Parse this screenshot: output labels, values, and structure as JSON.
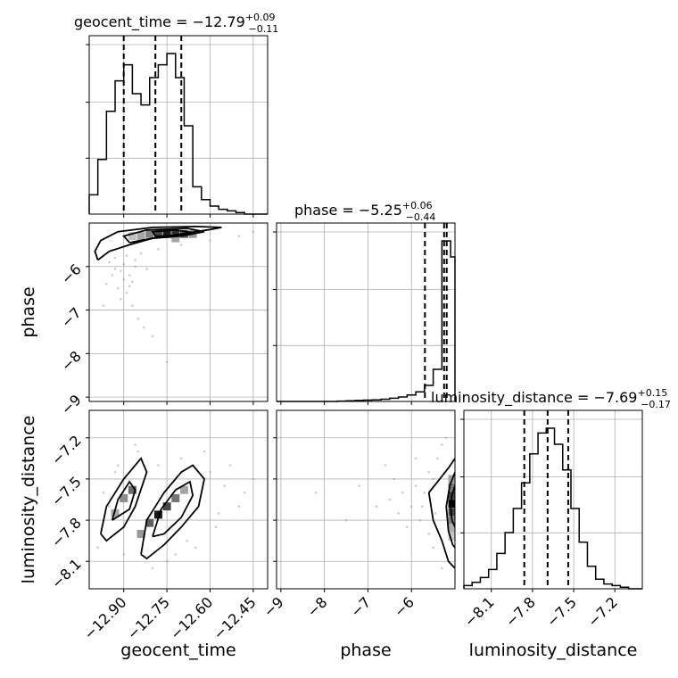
{
  "chart_data": {
    "type": "corner",
    "parameters": [
      "geocent_time",
      "phase",
      "luminosity_distance"
    ],
    "axis_labels": {
      "geocent_time": "geocent_time",
      "phase": "phase",
      "luminosity_distance": "luminosity_distance"
    },
    "ranges": {
      "geocent_time": [
        -13.02,
        -12.4
      ],
      "phase": [
        -9.1,
        -5.0
      ],
      "luminosity_distance": [
        -8.3,
        -7.0
      ]
    },
    "ticks": {
      "geocent_time": [
        -12.9,
        -12.75,
        -12.6,
        -12.45
      ],
      "phase": [
        -9,
        -8,
        -7,
        -6
      ],
      "luminosity_distance": [
        -8.1,
        -7.8,
        -7.5,
        -7.2
      ]
    },
    "tick_labels": {
      "geocent_time": [
        "−12.90",
        "−12.75",
        "−12.60",
        "−12.45"
      ],
      "phase": [
        "−9",
        "−8",
        "−7",
        "−6"
      ],
      "luminosity_distance": [
        "−8.1",
        "−7.8",
        "−7.5",
        "−7.2"
      ]
    },
    "titles": {
      "geocent_time": {
        "main": "geocent_time = −12.79",
        "sup": "+0.09",
        "sub": "−0.11"
      },
      "phase": {
        "main": "phase = −5.25",
        "sup": "+0.06",
        "sub": "−0.44"
      },
      "luminosity_distance": {
        "main": "luminosity_distance = −7.69",
        "sup": "+0.15",
        "sub": "−0.17"
      }
    },
    "quantiles": {
      "geocent_time": [
        -12.9,
        -12.79,
        -12.7
      ],
      "phase": [
        -5.69,
        -5.25,
        -5.19
      ],
      "luminosity_distance": [
        -7.86,
        -7.69,
        -7.54
      ]
    },
    "histograms": {
      "geocent_time": {
        "edges": [
          -13.02,
          -12.99,
          -12.96,
          -12.93,
          -12.9,
          -12.87,
          -12.84,
          -12.81,
          -12.78,
          -12.75,
          -12.72,
          -12.69,
          -12.66,
          -12.63,
          -12.6,
          -12.57,
          -12.54,
          -12.51,
          -12.48,
          -12.45,
          -12.42,
          -12.4
        ],
        "counts": [
          0.12,
          0.34,
          0.64,
          0.83,
          0.93,
          0.75,
          0.68,
          0.85,
          0.93,
          1.0,
          0.85,
          0.55,
          0.17,
          0.09,
          0.05,
          0.03,
          0.02,
          0.01,
          0.0,
          0.0,
          0.0
        ]
      },
      "phase": {
        "edges": [
          -9.1,
          -8.9,
          -8.7,
          -8.5,
          -8.3,
          -8.1,
          -7.9,
          -7.7,
          -7.5,
          -7.3,
          -7.1,
          -6.9,
          -6.7,
          -6.5,
          -6.3,
          -6.1,
          -5.9,
          -5.7,
          -5.5,
          -5.3,
          -5.1,
          -5.0
        ],
        "counts": [
          0.0,
          0.0,
          0.0,
          0.0,
          0.0,
          0.0,
          0.0,
          0.002,
          0.004,
          0.006,
          0.008,
          0.01,
          0.014,
          0.02,
          0.028,
          0.04,
          0.06,
          0.1,
          0.2,
          1.0,
          0.9
        ]
      },
      "luminosity_distance": {
        "edges": [
          -8.3,
          -8.24,
          -8.18,
          -8.12,
          -8.06,
          -8.0,
          -7.94,
          -7.88,
          -7.82,
          -7.76,
          -7.7,
          -7.64,
          -7.58,
          -7.52,
          -7.46,
          -7.4,
          -7.34,
          -7.28,
          -7.22,
          -7.16,
          -7.1,
          -7.0
        ],
        "counts": [
          0.02,
          0.04,
          0.07,
          0.12,
          0.22,
          0.35,
          0.5,
          0.66,
          0.84,
          0.97,
          1.0,
          0.9,
          0.74,
          0.5,
          0.29,
          0.14,
          0.06,
          0.03,
          0.02,
          0.01,
          0.0
        ]
      }
    },
    "density_2d": {
      "phase_vs_geocent_time": {
        "x_param": "geocent_time",
        "y_param": "phase",
        "cells": [
          {
            "x": -12.75,
            "y": -5.25,
            "level": 0.9
          },
          {
            "x": -12.72,
            "y": -5.25,
            "level": 0.8
          },
          {
            "x": -12.78,
            "y": -5.25,
            "level": 0.7
          },
          {
            "x": -12.69,
            "y": -5.25,
            "level": 0.6
          },
          {
            "x": -12.81,
            "y": -5.25,
            "level": 0.45
          },
          {
            "x": -12.84,
            "y": -5.3,
            "level": 0.3
          },
          {
            "x": -12.66,
            "y": -5.25,
            "level": 0.35
          },
          {
            "x": -12.72,
            "y": -5.35,
            "level": 0.3
          },
          {
            "x": -12.87,
            "y": -5.3,
            "level": 0.18
          }
        ],
        "contours": [
          [
            [
              -12.99,
              -5.85
            ],
            [
              -12.95,
              -5.65
            ],
            [
              -12.88,
              -5.5
            ],
            [
              -12.8,
              -5.35
            ],
            [
              -12.7,
              -5.25
            ],
            [
              -12.6,
              -5.15
            ],
            [
              -12.56,
              -5.1
            ],
            [
              -12.65,
              -5.08
            ],
            [
              -12.8,
              -5.1
            ],
            [
              -12.92,
              -5.2
            ],
            [
              -12.98,
              -5.4
            ],
            [
              -13.0,
              -5.65
            ],
            [
              -12.99,
              -5.85
            ]
          ],
          [
            [
              -12.88,
              -5.45
            ],
            [
              -12.8,
              -5.35
            ],
            [
              -12.7,
              -5.3
            ],
            [
              -12.62,
              -5.2
            ],
            [
              -12.68,
              -5.12
            ],
            [
              -12.82,
              -5.16
            ],
            [
              -12.9,
              -5.3
            ],
            [
              -12.88,
              -5.45
            ]
          ],
          [
            [
              -12.79,
              -5.3
            ],
            [
              -12.72,
              -5.3
            ],
            [
              -12.66,
              -5.22
            ],
            [
              -12.72,
              -5.16
            ],
            [
              -12.8,
              -5.2
            ],
            [
              -12.79,
              -5.3
            ]
          ]
        ],
        "scatter": [
          [
            -12.93,
            -5.8
          ],
          [
            -12.91,
            -6.1
          ],
          [
            -12.9,
            -6.3
          ],
          [
            -12.92,
            -6.5
          ],
          [
            -12.88,
            -6.2
          ],
          [
            -12.95,
            -5.9
          ],
          [
            -12.86,
            -6.0
          ],
          [
            -12.89,
            -6.6
          ],
          [
            -12.87,
            -6.9
          ],
          [
            -12.85,
            -7.2
          ],
          [
            -12.83,
            -7.4
          ],
          [
            -12.8,
            -7.6
          ],
          [
            -12.94,
            -6.2
          ],
          [
            -12.9,
            -5.95
          ],
          [
            -12.84,
            -5.7
          ],
          [
            -12.78,
            -5.6
          ],
          [
            -12.7,
            -5.5
          ],
          [
            -12.6,
            -5.4
          ],
          [
            -12.5,
            -5.3
          ],
          [
            -12.45,
            -5.2
          ],
          [
            -12.96,
            -6.4
          ],
          [
            -12.88,
            -6.45
          ],
          [
            -12.91,
            -6.75
          ],
          [
            -12.86,
            -5.85
          ],
          [
            -12.82,
            -6.05
          ],
          [
            -12.75,
            -8.2
          ],
          [
            -12.97,
            -6.9
          ],
          [
            -12.93,
            -6.05
          ],
          [
            -12.89,
            -5.75
          ],
          [
            -12.87,
            -6.35
          ]
        ]
      },
      "luminosity_distance_vs_geocent_time": {
        "x_param": "geocent_time",
        "y_param": "luminosity_distance",
        "cells": [
          {
            "x": -12.87,
            "y": -7.58,
            "level": 0.55
          },
          {
            "x": -12.9,
            "y": -7.64,
            "level": 0.4
          },
          {
            "x": -12.93,
            "y": -7.75,
            "level": 0.3
          },
          {
            "x": -12.78,
            "y": -7.76,
            "level": 0.9
          },
          {
            "x": -12.75,
            "y": -7.7,
            "level": 0.7
          },
          {
            "x": -12.81,
            "y": -7.82,
            "level": 0.6
          },
          {
            "x": -12.72,
            "y": -7.64,
            "level": 0.5
          },
          {
            "x": -12.84,
            "y": -7.9,
            "level": 0.35
          },
          {
            "x": -12.69,
            "y": -7.58,
            "level": 0.3
          }
        ],
        "contours": [
          [
            [
              -12.98,
              -7.9
            ],
            [
              -12.96,
              -7.7
            ],
            [
              -12.9,
              -7.5
            ],
            [
              -12.84,
              -7.35
            ],
            [
              -12.82,
              -7.45
            ],
            [
              -12.86,
              -7.7
            ],
            [
              -12.9,
              -7.85
            ],
            [
              -12.96,
              -7.95
            ],
            [
              -12.98,
              -7.9
            ]
          ],
          [
            [
              -12.94,
              -7.8
            ],
            [
              -12.92,
              -7.65
            ],
            [
              -12.88,
              -7.52
            ],
            [
              -12.86,
              -7.58
            ],
            [
              -12.88,
              -7.72
            ],
            [
              -12.94,
              -7.8
            ]
          ],
          [
            [
              -12.84,
              -8.05
            ],
            [
              -12.82,
              -7.8
            ],
            [
              -12.76,
              -7.6
            ],
            [
              -12.7,
              -7.45
            ],
            [
              -12.66,
              -7.4
            ],
            [
              -12.62,
              -7.5
            ],
            [
              -12.64,
              -7.7
            ],
            [
              -12.7,
              -7.85
            ],
            [
              -12.76,
              -7.98
            ],
            [
              -12.82,
              -8.08
            ],
            [
              -12.84,
              -8.05
            ]
          ],
          [
            [
              -12.8,
              -7.92
            ],
            [
              -12.77,
              -7.72
            ],
            [
              -12.72,
              -7.58
            ],
            [
              -12.67,
              -7.52
            ],
            [
              -12.66,
              -7.62
            ],
            [
              -12.7,
              -7.78
            ],
            [
              -12.76,
              -7.9
            ],
            [
              -12.8,
              -7.92
            ]
          ]
        ],
        "scatter": [
          [
            -12.99,
            -8.0
          ],
          [
            -12.97,
            -7.6
          ],
          [
            -12.93,
            -7.45
          ],
          [
            -12.85,
            -7.3
          ],
          [
            -12.78,
            -7.4
          ],
          [
            -12.7,
            -7.35
          ],
          [
            -12.6,
            -7.45
          ],
          [
            -12.55,
            -7.55
          ],
          [
            -12.5,
            -7.7
          ],
          [
            -12.58,
            -7.85
          ],
          [
            -12.65,
            -8.0
          ],
          [
            -12.72,
            -8.05
          ],
          [
            -12.8,
            -8.15
          ],
          [
            -12.9,
            -8.05
          ],
          [
            -12.95,
            -7.7
          ],
          [
            -12.62,
            -7.3
          ],
          [
            -12.48,
            -7.6
          ],
          [
            -12.53,
            -7.4
          ],
          [
            -12.86,
            -7.25
          ],
          [
            -12.75,
            -8.1
          ],
          [
            -12.68,
            -7.95
          ],
          [
            -12.92,
            -7.4
          ],
          [
            -12.57,
            -7.75
          ],
          [
            -12.45,
            -7.5
          ]
        ]
      },
      "luminosity_distance_vs_phase": {
        "x_param": "phase",
        "y_param": "luminosity_distance",
        "cells": [
          {
            "x": -5.06,
            "y": -7.68,
            "level": 1.0
          },
          {
            "x": -5.06,
            "y": -7.62,
            "level": 0.7
          },
          {
            "x": -5.06,
            "y": -7.74,
            "level": 0.7
          },
          {
            "x": -5.06,
            "y": -7.56,
            "level": 0.5
          },
          {
            "x": -5.06,
            "y": -7.8,
            "level": 0.45
          },
          {
            "x": -5.06,
            "y": -7.5,
            "level": 0.3
          },
          {
            "x": -5.06,
            "y": -7.86,
            "level": 0.25
          },
          {
            "x": -5.06,
            "y": -7.92,
            "level": 0.15
          }
        ],
        "contours": [
          [
            [
              -5.0,
              -7.35
            ],
            [
              -5.15,
              -7.42
            ],
            [
              -5.35,
              -7.5
            ],
            [
              -5.6,
              -7.6
            ],
            [
              -5.5,
              -7.8
            ],
            [
              -5.3,
              -7.95
            ],
            [
              -5.15,
              -8.1
            ],
            [
              -5.0,
              -8.15
            ]
          ],
          [
            [
              -5.0,
              -7.45
            ],
            [
              -5.12,
              -7.55
            ],
            [
              -5.2,
              -7.7
            ],
            [
              -5.15,
              -7.88
            ],
            [
              -5.05,
              -7.98
            ],
            [
              -5.0,
              -8.0
            ]
          ],
          [
            [
              -5.0,
              -7.55
            ],
            [
              -5.07,
              -7.62
            ],
            [
              -5.1,
              -7.7
            ],
            [
              -5.07,
              -7.8
            ],
            [
              -5.0,
              -7.85
            ]
          ]
        ],
        "scatter": [
          [
            -5.5,
            -7.5
          ],
          [
            -5.7,
            -7.6
          ],
          [
            -5.9,
            -7.55
          ],
          [
            -6.0,
            -7.7
          ],
          [
            -6.2,
            -7.6
          ],
          [
            -6.5,
            -7.65
          ],
          [
            -5.8,
            -7.8
          ],
          [
            -5.6,
            -7.9
          ],
          [
            -5.4,
            -7.35
          ],
          [
            -5.3,
            -7.25
          ],
          [
            -5.2,
            -7.2
          ],
          [
            -5.6,
            -7.45
          ],
          [
            -6.1,
            -7.85
          ],
          [
            -6.4,
            -7.5
          ],
          [
            -6.8,
            -7.7
          ],
          [
            -7.2,
            -7.55
          ],
          [
            -5.5,
            -8.0
          ],
          [
            -5.3,
            -8.15
          ],
          [
            -5.9,
            -7.35
          ],
          [
            -6.3,
            -7.75
          ],
          [
            -5.75,
            -7.7
          ],
          [
            -5.45,
            -7.75
          ],
          [
            -6.6,
            -7.4
          ],
          [
            -7.5,
            -7.8
          ],
          [
            -8.2,
            -7.6
          ]
        ]
      }
    }
  }
}
